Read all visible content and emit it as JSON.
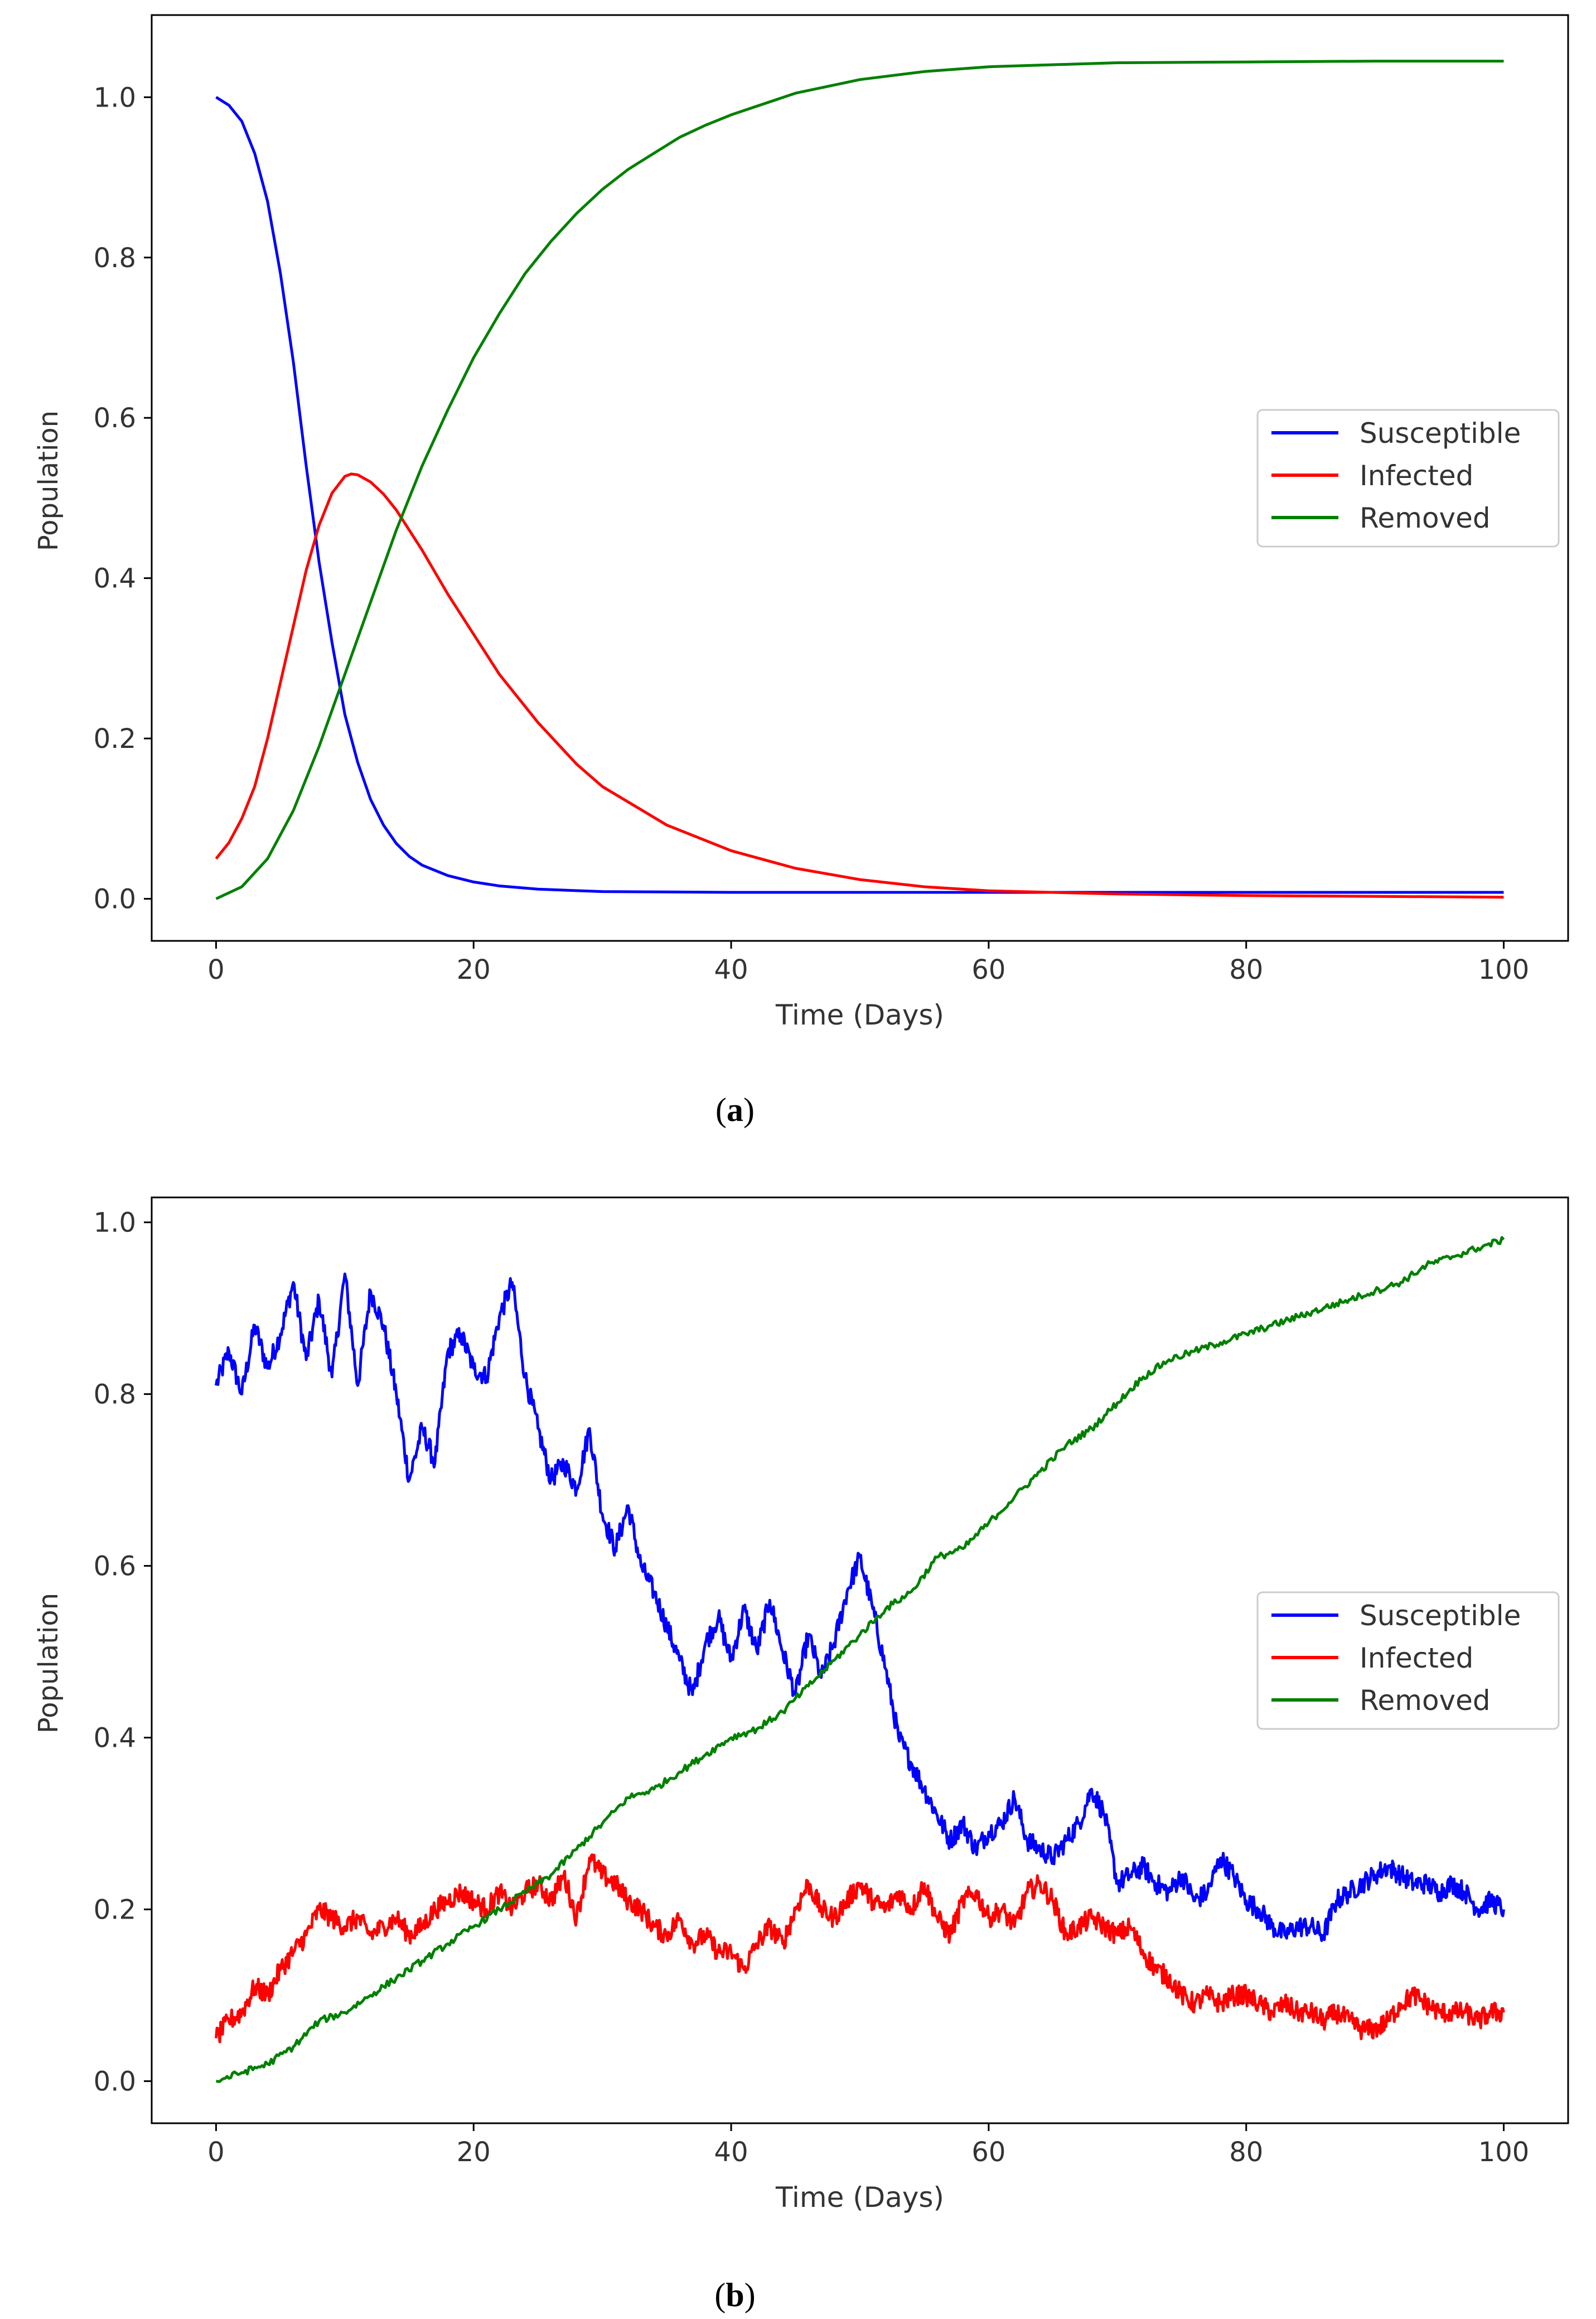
{
  "chart_data": [
    {
      "panel": "a",
      "caption": {
        "open": "(",
        "letter": "a",
        "close": ")"
      },
      "type": "line",
      "title": "",
      "xlabel": "Time (Days)",
      "ylabel": "Population",
      "xlim": [
        -5,
        105
      ],
      "ylim": [
        -0.0525,
        1.1025
      ],
      "xticks": [
        0,
        20,
        40,
        60,
        80,
        100
      ],
      "yticks": [
        0.0,
        0.2,
        0.4,
        0.6,
        0.8,
        1.0
      ],
      "xtick_labels": [
        "0",
        "20",
        "40",
        "60",
        "80",
        "100"
      ],
      "ytick_labels": [
        "0.0",
        "0.2",
        "0.4",
        "0.6",
        "0.8",
        "1.0"
      ],
      "grid": false,
      "legend_position": "center-right",
      "series": [
        {
          "name": "Susceptible",
          "color": "#0000ff",
          "x": [
            0,
            1,
            2,
            3,
            4,
            5,
            6,
            7,
            8,
            9,
            10,
            11,
            12,
            13,
            14,
            15,
            16,
            18,
            20,
            22,
            25,
            30,
            35,
            40,
            50,
            60,
            70,
            80,
            90,
            100
          ],
          "y": [
            1.0,
            0.99,
            0.97,
            0.93,
            0.87,
            0.78,
            0.67,
            0.54,
            0.42,
            0.32,
            0.23,
            0.17,
            0.124,
            0.092,
            0.069,
            0.053,
            0.042,
            0.029,
            0.021,
            0.016,
            0.012,
            0.009,
            0.0085,
            0.008,
            0.008,
            0.008,
            0.008,
            0.008,
            0.008,
            0.008
          ]
        },
        {
          "name": "Infected",
          "color": "#ff0000",
          "x": [
            0,
            1,
            2,
            3,
            4,
            5,
            6,
            7,
            8,
            9,
            10,
            10.5,
            11,
            12,
            13,
            14,
            15,
            16,
            18,
            20,
            22,
            25,
            28,
            30,
            35,
            40,
            45,
            50,
            55,
            60,
            70,
            80,
            90,
            100
          ],
          "y": [
            0.05,
            0.07,
            0.1,
            0.14,
            0.2,
            0.27,
            0.34,
            0.41,
            0.466,
            0.506,
            0.527,
            0.53,
            0.529,
            0.52,
            0.505,
            0.485,
            0.46,
            0.435,
            0.38,
            0.33,
            0.28,
            0.22,
            0.168,
            0.14,
            0.092,
            0.06,
            0.038,
            0.024,
            0.015,
            0.01,
            0.006,
            0.004,
            0.003,
            0.002
          ]
        },
        {
          "name": "Removed",
          "color": "#008000",
          "x": [
            0,
            2,
            4,
            6,
            8,
            10,
            12,
            14,
            16,
            18,
            20,
            22,
            24,
            26,
            28,
            30,
            32,
            34,
            36,
            38,
            40,
            45,
            50,
            55,
            60,
            70,
            80,
            90,
            100
          ],
          "y": [
            0.0,
            0.015,
            0.05,
            0.11,
            0.19,
            0.28,
            0.37,
            0.46,
            0.54,
            0.61,
            0.675,
            0.73,
            0.78,
            0.82,
            0.855,
            0.885,
            0.91,
            0.93,
            0.95,
            0.965,
            0.978,
            1.005,
            1.022,
            1.032,
            1.038,
            1.043,
            1.044,
            1.045,
            1.045
          ]
        }
      ]
    },
    {
      "panel": "b",
      "caption": {
        "open": "(",
        "letter": "b",
        "close": ")"
      },
      "type": "line",
      "title": "",
      "xlabel": "Time (Days)",
      "ylabel": "Population",
      "xlim": [
        -5,
        105
      ],
      "ylim": [
        -0.049,
        1.029
      ],
      "xticks": [
        0,
        20,
        40,
        60,
        80,
        100
      ],
      "yticks": [
        0.0,
        0.2,
        0.4,
        0.6,
        0.8,
        1.0
      ],
      "xtick_labels": [
        "0",
        "20",
        "40",
        "60",
        "80",
        "100"
      ],
      "ytick_labels": [
        "0.0",
        "0.2",
        "0.4",
        "0.6",
        "0.8",
        "1.0"
      ],
      "grid": false,
      "legend_position": "center-right",
      "series": [
        {
          "name": "Susceptible",
          "color": "#0000ff",
          "x": [
            0,
            1,
            2,
            3,
            4,
            5,
            6,
            7,
            8,
            9,
            10,
            11,
            12,
            13,
            14,
            15,
            16,
            17,
            18,
            19,
            20,
            21,
            22,
            23,
            24,
            25,
            26,
            27,
            28,
            29,
            30,
            31,
            32,
            33,
            34,
            35,
            36,
            37,
            38,
            39,
            40,
            41,
            42,
            43,
            44,
            45,
            46,
            47,
            48,
            49,
            50,
            51,
            52,
            53,
            54,
            55,
            56,
            57,
            58,
            59,
            60,
            61,
            62,
            63,
            64,
            65,
            66,
            67,
            68,
            69,
            70,
            71,
            72,
            73,
            74,
            75,
            76,
            77,
            78,
            79,
            80,
            81,
            82,
            83,
            84,
            85,
            86,
            87,
            88,
            89,
            90,
            91,
            92,
            93,
            94,
            95,
            96,
            97,
            98,
            99,
            100
          ],
          "y": [
            0.81,
            0.85,
            0.8,
            0.88,
            0.83,
            0.87,
            0.93,
            0.84,
            0.91,
            0.82,
            0.94,
            0.81,
            0.92,
            0.88,
            0.8,
            0.7,
            0.76,
            0.72,
            0.85,
            0.87,
            0.83,
            0.82,
            0.89,
            0.93,
            0.82,
            0.76,
            0.7,
            0.72,
            0.69,
            0.76,
            0.66,
            0.62,
            0.67,
            0.6,
            0.57,
            0.53,
            0.49,
            0.45,
            0.51,
            0.54,
            0.49,
            0.55,
            0.5,
            0.56,
            0.5,
            0.45,
            0.52,
            0.47,
            0.51,
            0.57,
            0.61,
            0.55,
            0.48,
            0.4,
            0.37,
            0.34,
            0.31,
            0.28,
            0.3,
            0.27,
            0.29,
            0.3,
            0.33,
            0.28,
            0.27,
            0.26,
            0.28,
            0.3,
            0.34,
            0.31,
            0.23,
            0.24,
            0.25,
            0.23,
            0.22,
            0.24,
            0.21,
            0.22,
            0.26,
            0.24,
            0.21,
            0.2,
            0.18,
            0.17,
            0.18,
            0.18,
            0.17,
            0.21,
            0.22,
            0.23,
            0.24,
            0.25,
            0.24,
            0.23,
            0.23,
            0.22,
            0.23,
            0.22,
            0.2,
            0.21,
            0.2
          ]
        },
        {
          "name": "Infected",
          "color": "#ff0000",
          "x": [
            0,
            1,
            2,
            3,
            4,
            5,
            6,
            7,
            8,
            9,
            10,
            11,
            12,
            13,
            14,
            15,
            16,
            17,
            18,
            19,
            20,
            21,
            22,
            23,
            24,
            25,
            26,
            27,
            28,
            29,
            30,
            31,
            32,
            33,
            34,
            35,
            36,
            37,
            38,
            39,
            40,
            41,
            42,
            43,
            44,
            45,
            46,
            47,
            48,
            49,
            50,
            51,
            52,
            53,
            54,
            55,
            56,
            57,
            58,
            59,
            60,
            61,
            62,
            63,
            64,
            65,
            66,
            67,
            68,
            69,
            70,
            71,
            72,
            73,
            74,
            75,
            76,
            77,
            78,
            79,
            80,
            81,
            82,
            83,
            84,
            85,
            86,
            87,
            88,
            89,
            90,
            91,
            92,
            93,
            94,
            95,
            96,
            97,
            98,
            99,
            100
          ],
          "y": [
            0.05,
            0.07,
            0.08,
            0.11,
            0.1,
            0.13,
            0.15,
            0.17,
            0.2,
            0.19,
            0.18,
            0.19,
            0.17,
            0.18,
            0.19,
            0.17,
            0.18,
            0.2,
            0.21,
            0.22,
            0.21,
            0.2,
            0.22,
            0.2,
            0.22,
            0.23,
            0.21,
            0.24,
            0.19,
            0.26,
            0.24,
            0.23,
            0.21,
            0.2,
            0.18,
            0.17,
            0.19,
            0.16,
            0.17,
            0.15,
            0.15,
            0.13,
            0.16,
            0.18,
            0.16,
            0.2,
            0.23,
            0.2,
            0.19,
            0.21,
            0.23,
            0.21,
            0.2,
            0.22,
            0.2,
            0.23,
            0.19,
            0.17,
            0.21,
            0.22,
            0.19,
            0.2,
            0.18,
            0.22,
            0.23,
            0.21,
            0.17,
            0.18,
            0.19,
            0.18,
            0.17,
            0.18,
            0.15,
            0.13,
            0.12,
            0.1,
            0.09,
            0.1,
            0.09,
            0.1,
            0.1,
            0.09,
            0.08,
            0.09,
            0.08,
            0.08,
            0.07,
            0.08,
            0.07,
            0.06,
            0.06,
            0.07,
            0.09,
            0.1,
            0.09,
            0.08,
            0.08,
            0.08,
            0.07,
            0.08,
            0.08
          ]
        },
        {
          "name": "Removed",
          "color": "#008000",
          "x": [
            0,
            2,
            4,
            6,
            8,
            10,
            12,
            14,
            16,
            18,
            20,
            22,
            24,
            26,
            28,
            30,
            32,
            34,
            36,
            38,
            40,
            42,
            44,
            46,
            48,
            50,
            52,
            54,
            56,
            58,
            60,
            62,
            64,
            66,
            68,
            70,
            72,
            74,
            76,
            78,
            80,
            82,
            84,
            86,
            88,
            90,
            92,
            94,
            96,
            98,
            100
          ],
          "y": [
            0.0,
            0.01,
            0.02,
            0.04,
            0.07,
            0.08,
            0.1,
            0.12,
            0.14,
            0.16,
            0.18,
            0.2,
            0.22,
            0.24,
            0.27,
            0.3,
            0.33,
            0.34,
            0.36,
            0.38,
            0.4,
            0.41,
            0.43,
            0.46,
            0.49,
            0.52,
            0.55,
            0.57,
            0.61,
            0.62,
            0.65,
            0.68,
            0.71,
            0.74,
            0.76,
            0.79,
            0.82,
            0.84,
            0.85,
            0.86,
            0.87,
            0.88,
            0.89,
            0.9,
            0.91,
            0.92,
            0.93,
            0.95,
            0.96,
            0.97,
            0.98
          ]
        }
      ]
    }
  ]
}
